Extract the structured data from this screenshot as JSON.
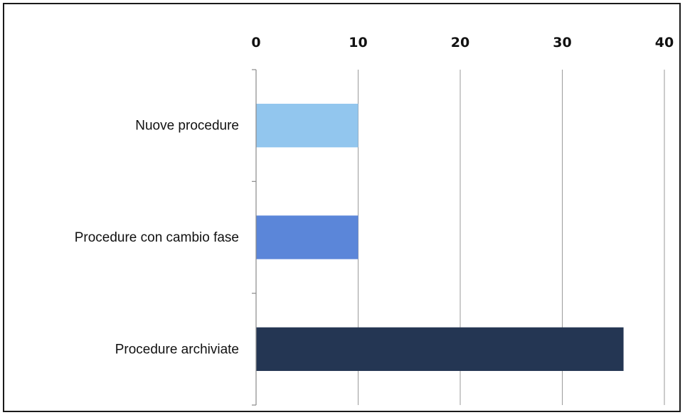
{
  "chart_data": {
    "type": "bar",
    "orientation": "horizontal",
    "x_axis_position": "top",
    "title": "",
    "xlabel": "",
    "ylabel": "",
    "xlim": [
      0,
      40
    ],
    "ticks": [
      "0",
      "10",
      "20",
      "30",
      "40"
    ],
    "tick_values": [
      0,
      10,
      20,
      30,
      40
    ],
    "grid": true,
    "categories": [
      "Nuove procedure",
      "Procedure con cambio fase",
      "Procedure archiviate"
    ],
    "values": [
      10,
      10,
      36
    ],
    "colors": [
      "#92c6ee",
      "#5b86d9",
      "#243653"
    ]
  }
}
